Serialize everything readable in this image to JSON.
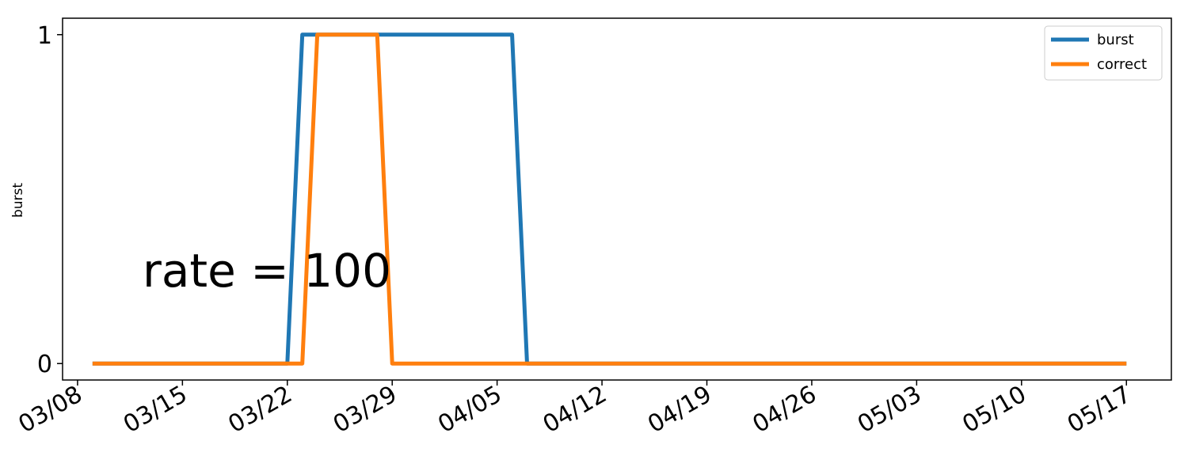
{
  "chart_data": {
    "type": "line",
    "title": "",
    "xlabel": "",
    "ylabel": "burst",
    "x_ticks": [
      "03/08",
      "03/15",
      "03/22",
      "03/29",
      "04/05",
      "04/12",
      "04/19",
      "04/26",
      "05/03",
      "05/10",
      "05/17"
    ],
    "y_ticks": [
      "0",
      "1"
    ],
    "xlim": [
      "03/07",
      "05/20"
    ],
    "ylim": [
      -0.05,
      1.05
    ],
    "grid": false,
    "legend_position": "top-right",
    "annotation": "rate = 100",
    "series": [
      {
        "name": "burst",
        "color": "#1f77b4",
        "x": [
          "03/09",
          "03/22",
          "03/23",
          "04/06",
          "04/07",
          "05/17"
        ],
        "y": [
          0,
          0,
          1,
          1,
          0,
          0
        ]
      },
      {
        "name": "correct",
        "color": "#ff7f0e",
        "x": [
          "03/09",
          "03/23",
          "03/24",
          "03/28",
          "03/29",
          "05/17"
        ],
        "y": [
          0,
          0,
          1,
          1,
          0,
          0
        ]
      }
    ]
  }
}
